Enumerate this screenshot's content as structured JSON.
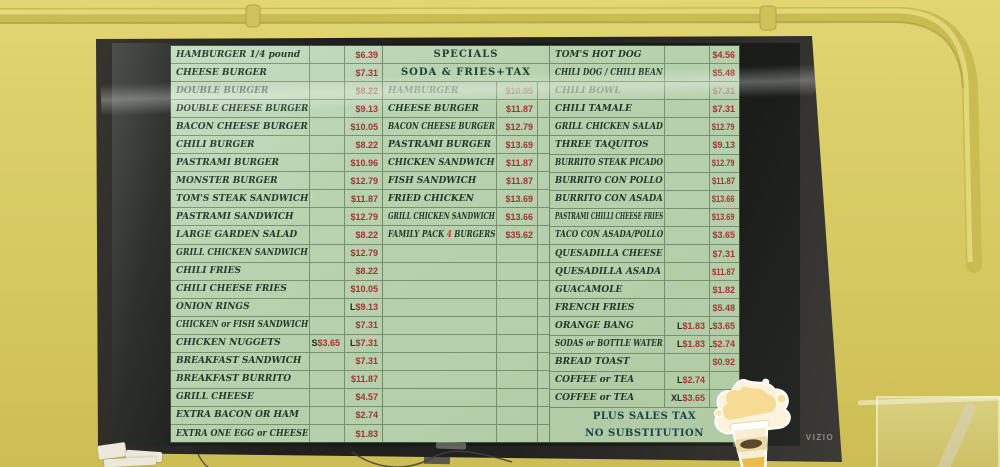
{
  "tv": {
    "brand": "VIZIO"
  },
  "menu": {
    "left": {
      "rows": [
        {
          "name": "HAMBURGER 1/4 pound",
          "price": {
            "value": "$6.39"
          }
        },
        {
          "name": "CHEESE BURGER",
          "price": {
            "value": "$7.31"
          }
        },
        {
          "name": "DOUBLE BURGER",
          "price": {
            "value": "$8.22"
          },
          "fade": "dim"
        },
        {
          "name": "DOUBLE CHEESE BURGER",
          "price": {
            "value": "$9.13"
          }
        },
        {
          "name": "BACON CHEESE BURGER",
          "price": {
            "value": "$10.05"
          }
        },
        {
          "name": "CHILI BURGER",
          "price": {
            "value": "$8.22"
          }
        },
        {
          "name": "PASTRAMI BURGER",
          "price": {
            "value": "$10.96"
          }
        },
        {
          "name": "MONSTER BURGER",
          "price": {
            "value": "$12.79"
          }
        },
        {
          "name": "TOM'S STEAK SANDWICH",
          "price": {
            "value": "$11.87"
          }
        },
        {
          "name": "PASTRAMI SANDWICH",
          "price": {
            "value": "$12.79"
          }
        },
        {
          "name": "LARGE GARDEN SALAD",
          "price": {
            "value": "$8.22"
          }
        },
        {
          "name": "GRILL CHICKEN SANDWICH",
          "price": {
            "value": "$12.79"
          }
        },
        {
          "name": "CHILI FRIES",
          "price": {
            "value": "$8.22"
          }
        },
        {
          "name": "CHILI CHEESE FRIES",
          "price": {
            "value": "$10.05"
          }
        },
        {
          "name": "ONION RINGS",
          "price": {
            "prefix": "L",
            "value": "$9.13"
          }
        },
        {
          "name": "CHICKEN or FISH SANDWICH",
          "price": {
            "value": "$7.31"
          }
        },
        {
          "name": "CHICKEN NUGGETS",
          "mid": {
            "prefix": "S",
            "value": "$3.65"
          },
          "price": {
            "prefix": "L",
            "value": "$7.31"
          }
        },
        {
          "name": "BREAKFAST SANDWICH",
          "price": {
            "value": "$7.31"
          }
        },
        {
          "name": "BREAKFAST BURRITO",
          "price": {
            "value": "$11.87"
          }
        },
        {
          "name": "GRILL CHEESE",
          "price": {
            "value": "$4.57"
          }
        },
        {
          "name": "EXTRA BACON OR HAM",
          "price": {
            "value": "$2.74"
          }
        },
        {
          "name": "EXTRA ONE EGG or CHEESE",
          "price": {
            "value": "$1.83"
          }
        }
      ]
    },
    "middle": {
      "header": "SPECIALS",
      "subheader": "SODA & FRIES+TAX",
      "empty_rows": 11,
      "rows": [
        {
          "name": "HAMBURGER",
          "price": {
            "value": "$10.05"
          },
          "fade": "faded"
        },
        {
          "name": "CHEESE BURGER",
          "price": {
            "value": "$11.87"
          }
        },
        {
          "name": "BACON CHEESE BURGER",
          "price": {
            "value": "$12.79"
          }
        },
        {
          "name": "PASTRAMI BURGER",
          "price": {
            "value": "$13.69"
          }
        },
        {
          "name": "CHICKEN SANDWICH",
          "price": {
            "value": "$11.87"
          }
        },
        {
          "name": "FISH SANDWICH",
          "price": {
            "value": "$11.87"
          }
        },
        {
          "name": "FRIED CHICKEN",
          "price": {
            "value": "$13.69"
          }
        },
        {
          "name": "GRILL CHICKEN SANDWICH",
          "price": {
            "value": "$13.66"
          }
        },
        {
          "name_pre": "FAMILY PACK ",
          "name_accent": "4",
          "name_post": " BURGERS",
          "price": {
            "value": "$35.62"
          }
        }
      ]
    },
    "right": {
      "rows": [
        {
          "name": "TOM'S HOT DOG",
          "price": {
            "value": "$4.56"
          }
        },
        {
          "name": "CHILI DOG / CHILI BEAN",
          "price": {
            "value": "$5.48"
          }
        },
        {
          "name": "CHILI BOWL",
          "price": {
            "value": "$7.31"
          },
          "fade": "faded"
        },
        {
          "name": "CHILI TAMALE",
          "price": {
            "value": "$7.31"
          }
        },
        {
          "name": "GRILL CHICKEN SALAD",
          "price": {
            "value": "$12.79"
          }
        },
        {
          "name": "THREE TAQUITOS",
          "price": {
            "value": "$9.13"
          }
        },
        {
          "name": "BURRITO STEAK PICADO",
          "price": {
            "value": "$12.79"
          }
        },
        {
          "name": "BURRITO CON POLLO",
          "price": {
            "value": "$11.87"
          }
        },
        {
          "name": "BURRITO CON ASADA",
          "price": {
            "value": "$13.66"
          }
        },
        {
          "name": "PASTRAMI CHILLI CHEESE FRIES",
          "price": {
            "value": "$13.69"
          }
        },
        {
          "name": "TACO CON ASADA/POLLO",
          "price": {
            "value": "$3.65"
          }
        },
        {
          "name": "QUESADILLA CHEESE",
          "price": {
            "value": "$7.31"
          }
        },
        {
          "name": "QUESADILLA ASADA",
          "price": {
            "value": "$11.87"
          }
        },
        {
          "name": "GUACAMOLE",
          "price": {
            "value": "$1.82"
          }
        },
        {
          "name": "FRENCH FRIES",
          "price": {
            "value": "$5.48"
          }
        },
        {
          "name": "ORANGE BANG",
          "mid": {
            "prefix": "L",
            "value": "$1.83"
          },
          "price": {
            "prefix": "XL",
            "value": "$3.65"
          }
        },
        {
          "name": "SODAS or BOTTLE WATER",
          "mid": {
            "prefix": "L",
            "value": "$1.83"
          },
          "price": {
            "prefix": "XL",
            "value": "$2.74"
          }
        },
        {
          "name": "BREAD TOAST",
          "price": {
            "value": "$0.92"
          }
        },
        {
          "name": "COFFEE or TEA",
          "mid": {
            "prefix": "L",
            "value": "$2.74"
          }
        },
        {
          "name": "COFFEE or TEA",
          "mid": {
            "prefix": "XL",
            "value": "$3.65"
          }
        }
      ],
      "footer": [
        "PLUS SALES TAX",
        "NO SUBSTITUTION"
      ]
    }
  },
  "colors": {
    "menu_bg": "#b8d2ae",
    "item_text": "#21392b",
    "price_text": "#a23434",
    "header_text": "#1d4134",
    "footer_text": "#17424b",
    "accent_red": "#c23a28",
    "wall_yellow": "#d5c860",
    "bezel": "#23211e"
  }
}
